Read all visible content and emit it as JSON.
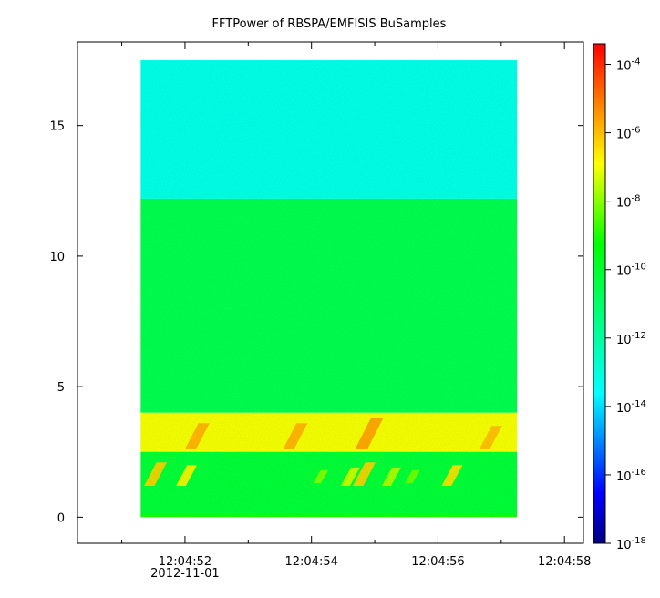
{
  "chart_data": {
    "type": "heatmap",
    "title": "FFTPower of RBSPA/EMFISIS  BuSamples",
    "xlabel": "",
    "ylabel": "",
    "x_ticks": [
      {
        "label": "12:04:52",
        "seconds": 52
      },
      {
        "label": "12:04:54",
        "seconds": 54
      },
      {
        "label": "12:04:56",
        "seconds": 56
      },
      {
        "label": "12:04:58",
        "seconds": 58
      }
    ],
    "x_minor_ticks_seconds": [
      51,
      53,
      55,
      57
    ],
    "x_date_label": "2012-11-01",
    "xlim_seconds": [
      50.3,
      58.3
    ],
    "y_ticks": [
      0,
      5,
      10,
      15
    ],
    "ylim": [
      -1,
      18.2
    ],
    "data_extent": {
      "x_seconds": [
        51.3,
        57.25
      ],
      "y": [
        0,
        17.5
      ]
    },
    "bands": [
      {
        "y": [
          12.2,
          17.5
        ],
        "log10_power": -13.2
      },
      {
        "y": [
          4.0,
          12.2
        ],
        "log10_power": -10.6
      },
      {
        "y": [
          2.5,
          4.0
        ],
        "log10_power": -7.0
      },
      {
        "y": [
          0.1,
          2.5
        ],
        "log10_power": -10.2
      },
      {
        "y": [
          0,
          0.1
        ],
        "log10_power": -9.0
      }
    ],
    "bursts": [
      {
        "x_seconds": 51.45,
        "y": [
          1.2,
          2.1
        ],
        "log10_power": -6.3
      },
      {
        "x_seconds": 51.95,
        "y": [
          1.2,
          2.0
        ],
        "log10_power": -6.8
      },
      {
        "x_seconds": 52.1,
        "y": [
          2.6,
          3.6
        ],
        "log10_power": -5.8
      },
      {
        "x_seconds": 53.65,
        "y": [
          2.6,
          3.6
        ],
        "log10_power": -5.8
      },
      {
        "x_seconds": 54.1,
        "y": [
          1.3,
          1.8
        ],
        "log10_power": -8.0
      },
      {
        "x_seconds": 54.55,
        "y": [
          1.2,
          1.9
        ],
        "log10_power": -7.3
      },
      {
        "x_seconds": 54.75,
        "y": [
          1.2,
          2.1
        ],
        "log10_power": -6.3
      },
      {
        "x_seconds": 54.8,
        "y": [
          2.6,
          3.8
        ],
        "log10_power": -5.6
      },
      {
        "x_seconds": 55.2,
        "y": [
          1.2,
          1.9
        ],
        "log10_power": -7.6
      },
      {
        "x_seconds": 55.55,
        "y": [
          1.3,
          1.8
        ],
        "log10_power": -8.2
      },
      {
        "x_seconds": 56.15,
        "y": [
          1.2,
          2.0
        ],
        "log10_power": -6.5
      },
      {
        "x_seconds": 56.75,
        "y": [
          2.6,
          3.5
        ],
        "log10_power": -6.0
      }
    ],
    "colorbar": {
      "scale": "log",
      "range_log10": [
        -18,
        -3.4
      ],
      "tick_exponents": [
        -4,
        -6,
        -8,
        -10,
        -12,
        -14,
        -16,
        -18
      ],
      "tick_base": "10",
      "colors": [
        "#000080",
        "#0000ff",
        "#00ffff",
        "#00ff80",
        "#00ff00",
        "#ffff00",
        "#ff8000",
        "#ff0000"
      ]
    }
  }
}
